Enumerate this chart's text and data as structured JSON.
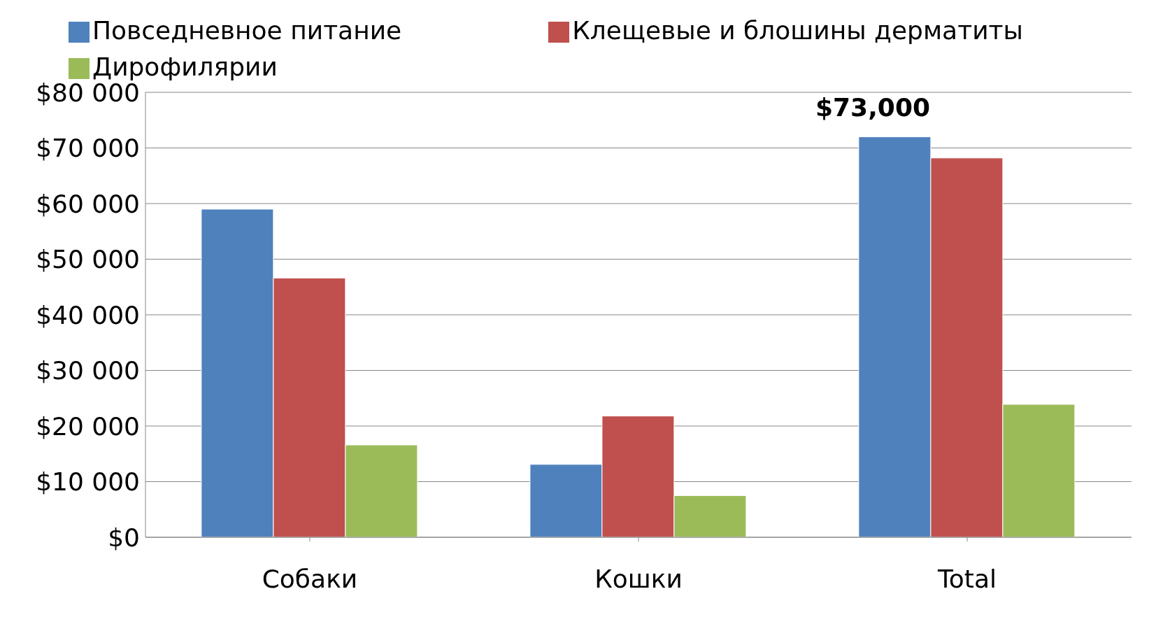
{
  "chart_data": {
    "type": "bar",
    "categories": [
      "Собаки",
      "Кошки",
      "Total"
    ],
    "series": [
      {
        "name": "Повседневное питание",
        "color": "#4f81bd",
        "values": [
          59000,
          13100,
          72000
        ]
      },
      {
        "name": "Клещевые и блошины дерматиты",
        "color": "#c0504d",
        "values": [
          46600,
          21800,
          68200
        ]
      },
      {
        "name": "Дирофилярии",
        "color": "#9bbb59",
        "values": [
          16600,
          7500,
          23900
        ]
      }
    ],
    "ylim": [
      0,
      80000
    ],
    "yticks": [
      {
        "value": 0,
        "label": "$0"
      },
      {
        "value": 10000,
        "label": "$10 000"
      },
      {
        "value": 20000,
        "label": "$20 000"
      },
      {
        "value": 30000,
        "label": "$30 000"
      },
      {
        "value": 40000,
        "label": "$40 000"
      },
      {
        "value": 50000,
        "label": "$50 000"
      },
      {
        "value": 60000,
        "label": "$60 000"
      },
      {
        "value": 70000,
        "label": "$70 000"
      },
      {
        "value": 80000,
        "label": "$80 000"
      }
    ],
    "grid": "y",
    "legend": "top",
    "annotations": [
      "$73,000"
    ]
  }
}
